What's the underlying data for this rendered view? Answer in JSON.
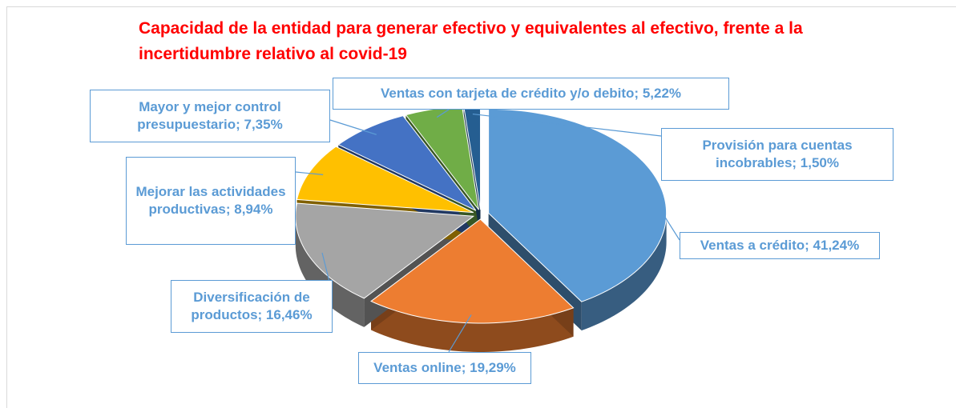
{
  "chart_data": {
    "type": "pie",
    "title": "Capacidad de la entidad para generar efectivo y equivalentes al efectivo, frente a la incertidumbre relativo al covid-19",
    "values": [
      41.24,
      19.29,
      16.46,
      8.94,
      7.35,
      5.22,
      1.5
    ],
    "value_labels": [
      "Ventas a crédito; 41,24%",
      "Ventas online; 19,29%",
      "Diversificación de productos; 16,46%",
      "Mejorar las actividades productivas; 8,94%",
      "Mayor y mejor control presupuestario; 7,35%",
      "Ventas con tarjeta de crédito y/o debito; 5,22%",
      "Provisión para cuentas incobrables; 1,50%"
    ],
    "colors": [
      "#5b9bd5",
      "#ed7d31",
      "#a5a5a5",
      "#ffc000",
      "#4472c4",
      "#70ad47",
      "#255e91"
    ]
  }
}
